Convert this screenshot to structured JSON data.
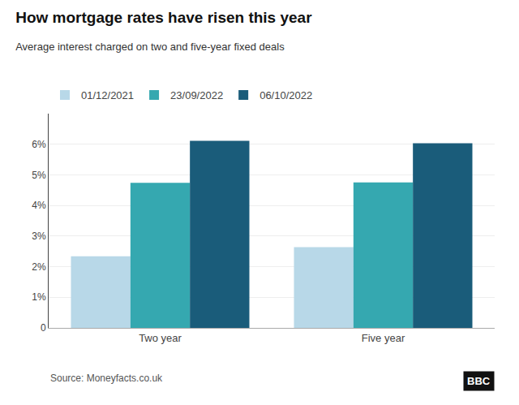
{
  "chart_data": {
    "type": "bar",
    "title": "How mortgage rates have risen this year",
    "subtitle": "Average interest charged on two and five-year fixed deals",
    "categories": [
      "Two year",
      "Five year"
    ],
    "series": [
      {
        "name": "01/12/2021",
        "color": "#b8d8e8",
        "values": [
          2.34,
          2.64
        ]
      },
      {
        "name": "23/09/2022",
        "color": "#35a8b0",
        "values": [
          4.74,
          4.75
        ]
      },
      {
        "name": "06/10/2022",
        "color": "#1a5c7a",
        "values": [
          6.11,
          6.03
        ]
      }
    ],
    "ylim": [
      0,
      7
    ],
    "yticks": [
      0,
      {
        "value": 1,
        "label": "1%"
      },
      {
        "value": 2,
        "label": "2%"
      },
      {
        "value": 3,
        "label": "3%"
      },
      {
        "value": 4,
        "label": "4%"
      },
      {
        "value": 5,
        "label": "5%"
      },
      {
        "value": 6,
        "label": "6%"
      }
    ],
    "grid": true,
    "legend": "top",
    "annotations": [
      "Source: Moneyfacts.co.uk",
      "BBC"
    ]
  }
}
